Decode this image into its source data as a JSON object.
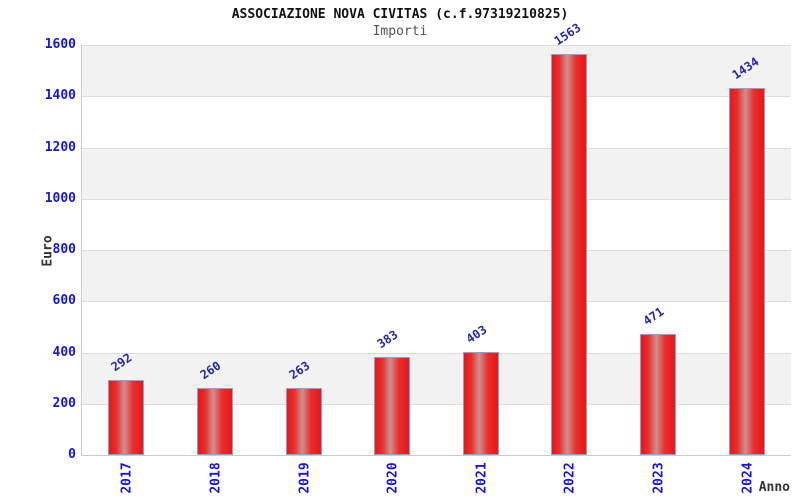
{
  "header": {
    "title": "ASSOCIAZIONE NOVA CIVITAS (c.f.97319210825)",
    "subtitle": "Importi"
  },
  "chart_data": {
    "type": "bar",
    "title": "ASSOCIAZIONE NOVA CIVITAS (c.f.97319210825)",
    "subtitle": "Importi",
    "categories": [
      "2017",
      "2018",
      "2019",
      "2020",
      "2021",
      "2022",
      "2023",
      "2024"
    ],
    "values": [
      292,
      260,
      263,
      383,
      403,
      1563,
      471,
      1434
    ],
    "xlabel": "Anno",
    "ylabel": "Euro",
    "ylim": [
      0,
      1600
    ],
    "ytick_step": 200,
    "yticks": [
      0,
      200,
      400,
      600,
      800,
      1000,
      1200,
      1400,
      1600
    ],
    "grid": true,
    "banded_background": true,
    "legend": "none",
    "colors": {
      "bar_fill": "#ee1414",
      "bar_highlight": "#d08f8f",
      "bar_border": "#7da7d9",
      "value_label": "#2525ad",
      "tick_label": "#1414dd",
      "band": "#f2f2f2",
      "gridline": "#dddddd",
      "axis": "#cccccc",
      "title": "#111111",
      "subtitle": "#555555",
      "axis_title": "#333333",
      "background": "#ffffff"
    }
  }
}
